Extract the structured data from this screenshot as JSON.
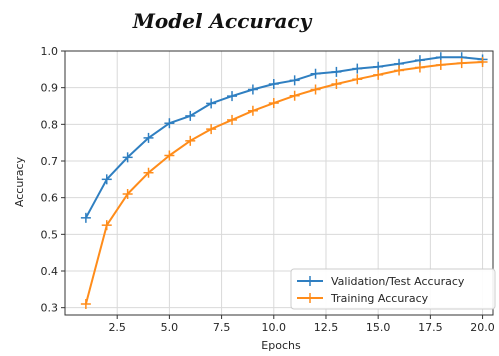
{
  "chart_data": {
    "type": "line",
    "title": "Model Accuracy",
    "xlabel": "Epochs",
    "ylabel": "Accuracy",
    "xlim": [
      0.0,
      20.5
    ],
    "ylim": [
      0.28,
      1.0
    ],
    "xticks": [
      2.5,
      5.0,
      7.5,
      10.0,
      12.5,
      15.0,
      17.5,
      20.0
    ],
    "xtick_labels": [
      "2.5",
      "5.0",
      "7.5",
      "10.0",
      "12.5",
      "15.0",
      "17.5",
      "20.0"
    ],
    "yticks": [
      0.3,
      0.4,
      0.5,
      0.6,
      0.7,
      0.8,
      0.9,
      1.0
    ],
    "ytick_labels": [
      "0.3",
      "0.4",
      "0.5",
      "0.6",
      "0.7",
      "0.8",
      "0.9",
      "1.0"
    ],
    "grid": true,
    "legend_position": "lower-right",
    "x": [
      1,
      2,
      3,
      4,
      5,
      6,
      7,
      8,
      9,
      10,
      11,
      12,
      13,
      14,
      15,
      16,
      17,
      18,
      19,
      20
    ],
    "series": [
      {
        "name": "Validation/Test Accuracy",
        "color": "#2f7fc1",
        "marker": "plus",
        "values": [
          0.545,
          0.65,
          0.71,
          0.763,
          0.803,
          0.823,
          0.857,
          0.877,
          0.895,
          0.91,
          0.92,
          0.938,
          0.943,
          0.952,
          0.957,
          0.965,
          0.975,
          0.983,
          0.983,
          0.977
        ]
      },
      {
        "name": "Training Accuracy",
        "color": "#ff8c1a",
        "marker": "plus",
        "values": [
          0.31,
          0.525,
          0.61,
          0.668,
          0.715,
          0.755,
          0.787,
          0.812,
          0.837,
          0.858,
          0.878,
          0.895,
          0.91,
          0.923,
          0.935,
          0.947,
          0.955,
          0.962,
          0.967,
          0.97
        ]
      }
    ]
  }
}
